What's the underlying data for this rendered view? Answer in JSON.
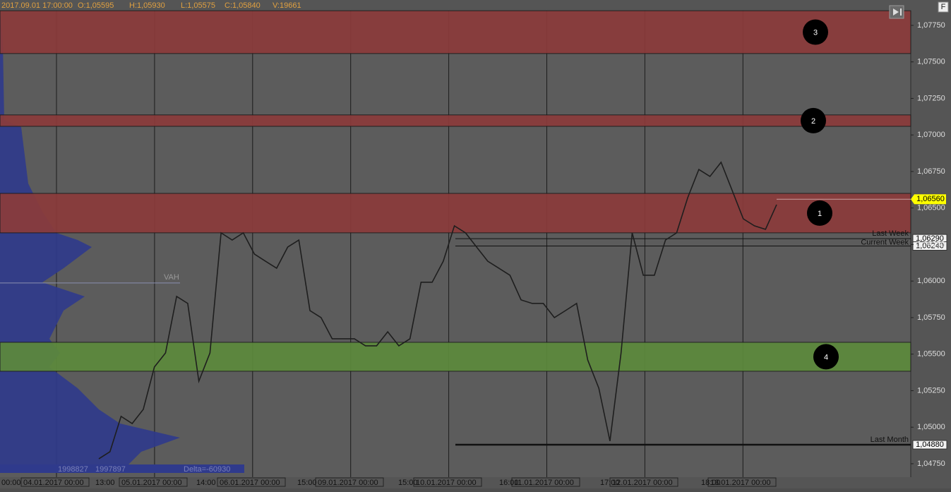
{
  "header": [
    "2017.09.01 17:00:00",
    "O:1,05595",
    "H:1,05930",
    "L:1,05575",
    "C:1,05840",
    "V:19661"
  ],
  "chart_data": {
    "type": "line",
    "ylim": [
      1.04658,
      1.07851
    ],
    "yticks": [
      {
        "value": 1.0775,
        "label": "1,07750"
      },
      {
        "value": 1.075,
        "label": "1,07500"
      },
      {
        "value": 1.0725,
        "label": "1,07250"
      },
      {
        "value": 1.07,
        "label": "1,07000"
      },
      {
        "value": 1.0675,
        "label": "1,06750"
      },
      {
        "value": 1.065,
        "label": "1,06500"
      },
      {
        "value": 1.0625,
        "label": "1,06250"
      },
      {
        "value": 1.06,
        "label": "1,06000"
      },
      {
        "value": 1.0575,
        "label": "1,05750"
      },
      {
        "value": 1.055,
        "label": "1,05500"
      },
      {
        "value": 1.0525,
        "label": "1,05250"
      },
      {
        "value": 1.05,
        "label": "1,05000"
      },
      {
        "value": 1.0475,
        "label": "1,04750"
      }
    ],
    "series": [
      {
        "color": "#1e1e1e",
        "values": [
          1.04784,
          1.04832,
          1.05074,
          1.05025,
          1.05122,
          1.05412,
          1.05508,
          1.05895,
          1.05847,
          1.05315,
          1.05508,
          1.0633,
          1.06281,
          1.0633,
          1.06185,
          1.06136,
          1.06088,
          1.06233,
          1.06281,
          1.05798,
          1.0575,
          1.05605,
          1.05605,
          1.05605,
          1.05557,
          1.05557,
          1.05653,
          1.05557,
          1.05605,
          1.05992,
          1.05992,
          1.06136,
          1.06378,
          1.0633,
          1.06233,
          1.06136,
          1.06088,
          1.0604,
          1.05871,
          1.05847,
          1.05847,
          1.0575,
          1.05798,
          1.05847,
          1.0546,
          1.05267,
          1.04905,
          1.05508,
          1.0633,
          1.0604,
          1.0604,
          1.06281,
          1.0633,
          1.06571,
          1.06764,
          1.06716,
          1.06813,
          1.0662,
          1.06426,
          1.06378,
          1.06354,
          1.06523
        ]
      }
    ],
    "zones": [
      {
        "label": "1",
        "range": [
          1.0633,
          1.066
        ],
        "color": "#8b3b3b"
      },
      {
        "label": "2",
        "range": [
          1.07059,
          1.07137
        ],
        "color": "#8b3b3b"
      },
      {
        "label": "3",
        "range": [
          1.07557,
          1.0785
        ],
        "color": "#8b3b3b"
      },
      {
        "label": "4",
        "range": [
          1.05383,
          1.05581
        ],
        "color": "#5d8a3c"
      }
    ],
    "levels": [
      {
        "name": "Last Week",
        "value": 1.0629,
        "label": "1,06290"
      },
      {
        "name": "Current Week",
        "value": 1.0624,
        "label": "1,06240"
      },
      {
        "name": "Last Month",
        "value": 1.0488,
        "label": "1,04880"
      }
    ],
    "current_price": {
      "value": 1.0656,
      "label": "1,06560"
    },
    "vah": {
      "name": "VAH",
      "value": 1.05987
    }
  },
  "x_labels": {
    "start": "00:00",
    "dates": [
      "04.01.2017 00:00",
      "05.01.2017 00:00",
      "06.01.2017 00:00",
      "09.01.2017 00:00",
      "10.01.2017 00:00",
      "11.01.2017 00:00",
      "12.01.2017 00:00",
      "13.01.2017 00:00"
    ],
    "times": [
      "13:00",
      "14:00",
      "15:00",
      "15:00",
      "16:00",
      "17:00",
      "18:00"
    ]
  },
  "footer": {
    "volumes": [
      "1998827",
      "1997897"
    ],
    "delta": "Delta=-60930"
  }
}
